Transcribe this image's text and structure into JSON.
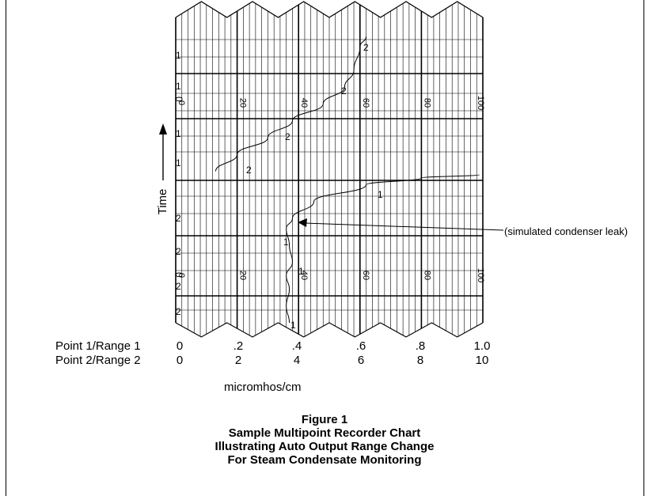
{
  "figure": {
    "number": "Figure 1",
    "title_lines": [
      "Sample Multipoint Recorder Chart",
      "Illustrating Auto Output Range Change",
      "For Steam Condensate Monitoring"
    ]
  },
  "axis": {
    "time_label": "Time",
    "units_label": "micromhos/cm",
    "scales": [
      {
        "name": "Point 1/Range 1",
        "ticks": [
          "0",
          ".2",
          ".4",
          ".6",
          ".8",
          "1.0"
        ]
      },
      {
        "name": "Point 2/Range 2",
        "ticks": [
          "0",
          "2",
          "4",
          "6",
          "8",
          "10"
        ]
      }
    ],
    "chart_tick_labels": [
      "0",
      "20",
      "40",
      "60",
      "80",
      "100"
    ]
  },
  "annotation": {
    "text": "(simulated condenser leak)"
  },
  "chart_data": {
    "type": "line",
    "series": [
      {
        "name": "1",
        "points_upper": [],
        "points_lower": [
          {
            "x": 37,
            "t": 0.0
          },
          {
            "x": 36,
            "t": 0.5
          },
          {
            "x": 37,
            "t": 1.0
          },
          {
            "x": 36,
            "t": 1.4
          },
          {
            "x": 38,
            "t": 1.8
          },
          {
            "x": 37,
            "t": 2.3
          },
          {
            "x": 36,
            "t": 2.8
          },
          {
            "x": 38,
            "t": 3.1
          },
          {
            "x": 45,
            "t": 3.6
          },
          {
            "x": 62,
            "t": 4.1
          },
          {
            "x": 80,
            "t": 4.3
          },
          {
            "x": 99,
            "t": 4.4
          }
        ]
      },
      {
        "name": "2",
        "points": [
          {
            "x": 13,
            "t": 4.5
          },
          {
            "x": 20,
            "t": 5.0
          },
          {
            "x": 30,
            "t": 5.5
          },
          {
            "x": 38,
            "t": 6.0
          },
          {
            "x": 48,
            "t": 6.5
          },
          {
            "x": 55,
            "t": 7.0
          },
          {
            "x": 58,
            "t": 7.5
          },
          {
            "x": 60,
            "t": 8.2
          },
          {
            "x": 62,
            "t": 8.5
          }
        ]
      }
    ],
    "point_markers": {
      "left_column": [
        "1",
        "1",
        "0",
        "1",
        "1",
        "2",
        "2",
        "0",
        "2",
        "2"
      ],
      "curve_1_labels": [
        "1",
        "1",
        "1",
        "1"
      ],
      "curve_2_labels": [
        "2",
        "2",
        "2",
        "2"
      ]
    }
  }
}
